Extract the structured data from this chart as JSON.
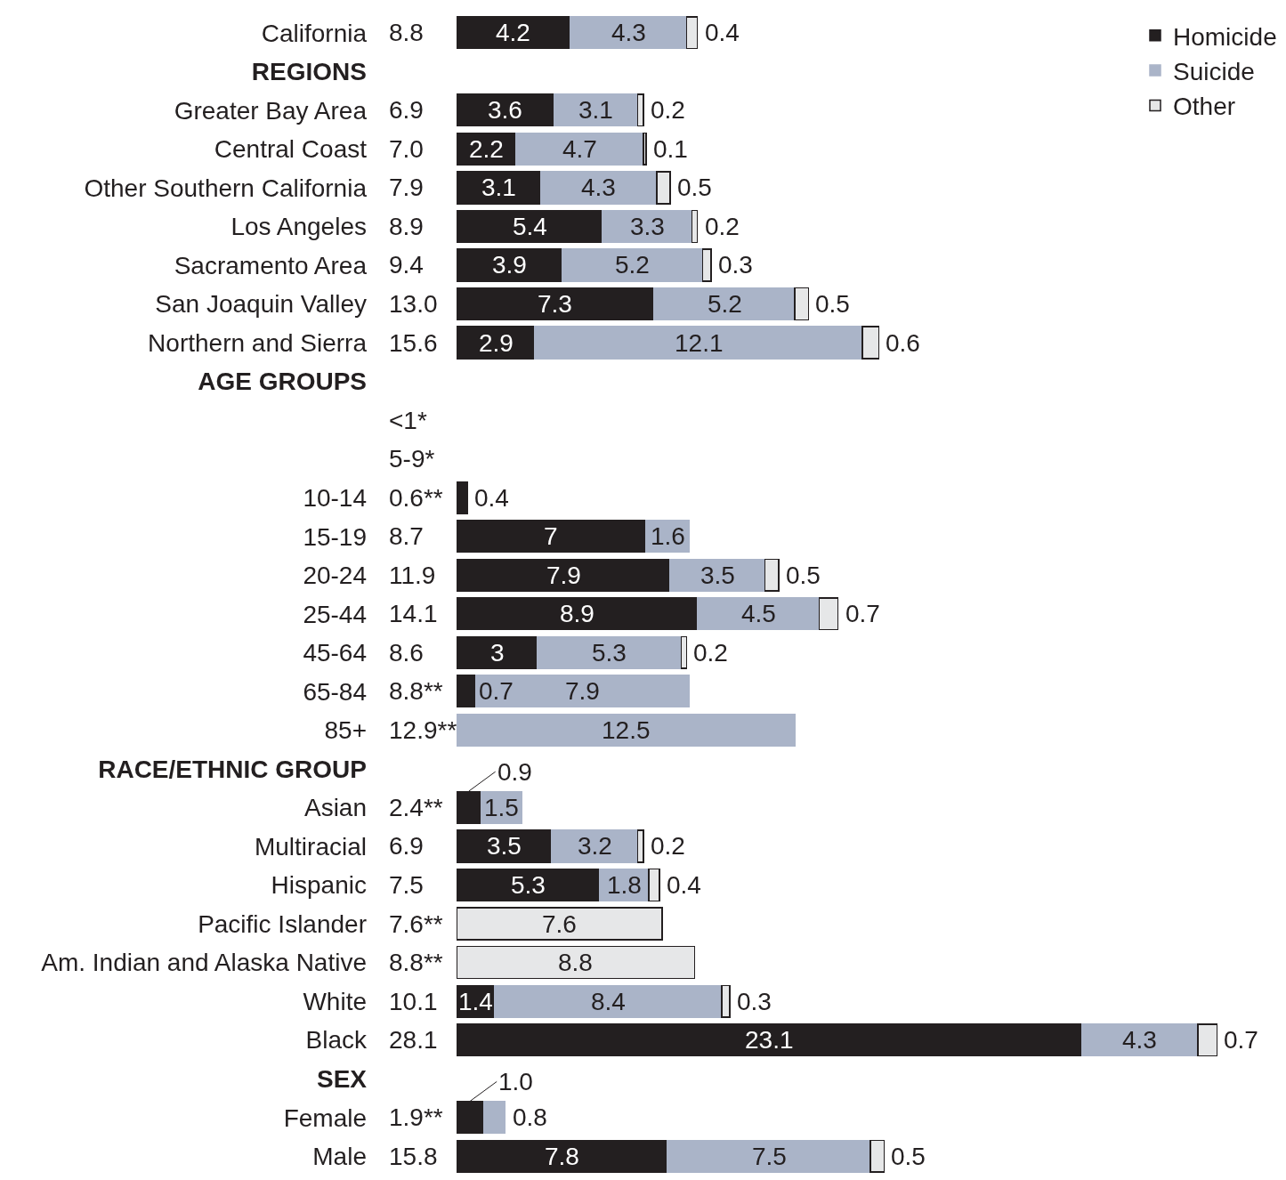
{
  "chart_data": {
    "type": "bar",
    "orientation": "horizontal",
    "stacked": true,
    "legend": "top right",
    "categories": [
      "California",
      null,
      "Greater Bay Area",
      "Central Coast",
      "Other Southern California",
      "Los Angeles",
      "Sacramento Area",
      "San Joaquin Valley",
      "Northern and Sierra",
      "AGE GROUPS",
      null,
      null,
      "10-14",
      "15-19",
      "20-24",
      "25-44",
      "45-64",
      "65-84",
      "85+",
      "RACE/ETHNIC GROUP",
      "Asian",
      "Multiracial",
      "Hispanic",
      "Pacific Islander",
      "Am. Indian and Alaska Native",
      "White",
      "Black",
      "SEX",
      "Female",
      "Male"
    ],
    "y2_categories": [
      "8.8",
      null,
      "6.9",
      "7.0",
      "7.9",
      "8.9",
      "9.4",
      "13.0",
      "15.6",
      null,
      "<1*",
      "5-9*",
      "0.6**",
      "8.7",
      "11.9",
      "14.1",
      "8.6",
      "8.8**",
      "12.9**",
      null,
      "2.4**",
      "6.9",
      "7.5",
      "7.6**",
      "8.8**",
      "10.1",
      "28.1",
      null,
      "1.9**",
      "15.8"
    ],
    "series": [
      {
        "name": "Homicide",
        "color": "#231f20",
        "values": [
          4.2,
          null,
          3.6,
          2.2,
          3.1,
          5.4,
          3.9,
          7.3,
          2.9,
          null,
          null,
          null,
          0.4,
          7,
          7.9,
          8.9,
          3,
          0.7,
          null,
          null,
          0.9,
          3.5,
          5.3,
          null,
          null,
          1.4,
          23.1,
          null,
          1.0,
          7.8
        ],
        "value_labels": [
          "4.2",
          null,
          "3.6",
          "2.2",
          "3.1",
          "5.4",
          "3.9",
          "7.3",
          "2.9",
          null,
          null,
          null,
          "0.4",
          "7",
          "7.9",
          "8.9",
          "3",
          "0.7",
          null,
          null,
          "0.9",
          "3.5",
          "5.3",
          null,
          null,
          "1.4",
          "23.1",
          null,
          "1.0",
          "7.8"
        ]
      },
      {
        "name": "Suicide",
        "color": "#aab4c8",
        "values": [
          4.3,
          null,
          3.1,
          4.7,
          4.3,
          3.3,
          5.2,
          5.2,
          12.1,
          null,
          null,
          null,
          null,
          1.6,
          3.5,
          4.5,
          5.3,
          7.9,
          12.5,
          null,
          1.5,
          3.2,
          1.8,
          null,
          null,
          8.4,
          4.3,
          null,
          0.8,
          7.5
        ],
        "value_labels": [
          "4.3",
          null,
          "3.1",
          "4.7",
          "4.3",
          "3.3",
          "5.2",
          "5.2",
          "12.1",
          null,
          null,
          null,
          null,
          "1.6",
          "3.5",
          "4.5",
          "5.3",
          "7.9",
          "12.5",
          null,
          "1.5",
          "3.2",
          "1.8",
          null,
          null,
          "8.4",
          "4.3",
          null,
          "0.8",
          "7.5"
        ]
      },
      {
        "name": "Other",
        "color": "#e6e7e8",
        "values": [
          0.4,
          null,
          0.2,
          0.1,
          0.5,
          0.2,
          0.3,
          0.5,
          0.6,
          null,
          null,
          null,
          null,
          null,
          0.5,
          0.7,
          0.2,
          null,
          null,
          null,
          null,
          0.2,
          0.4,
          7.6,
          8.8,
          0.3,
          0.7,
          null,
          null,
          0.5
        ],
        "value_labels": [
          "0.4",
          null,
          "0.2",
          "0.1",
          "0.5",
          "0.2",
          "0.3",
          "0.5",
          "0.6",
          null,
          null,
          null,
          null,
          null,
          "0.5",
          "0.7",
          "0.2",
          null,
          null,
          null,
          null,
          "0.2",
          "0.4",
          "7.6",
          "8.8",
          "0.3",
          "0.7",
          null,
          null,
          "0.5"
        ]
      }
    ],
    "annotations": [
      "REGIONS"
    ]
  }
}
